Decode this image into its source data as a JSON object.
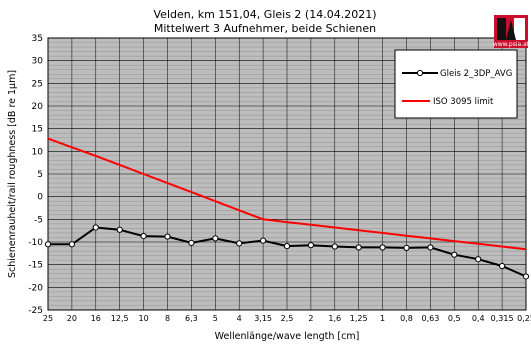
{
  "chart_data": {
    "type": "line",
    "title": "Velden, km 151,04, Gleis 2 (14.04.2021)",
    "subtitle": "Mittelwert 3 Aufnehmer, beide Schienen",
    "xlabel": "Wellenlänge/wave length [cm]",
    "ylabel": "Schienenrauheit/rail roughness [dB re 1µm]",
    "categories": [
      "25",
      "20",
      "16",
      "12,5",
      "10",
      "8",
      "6,3",
      "5",
      "4",
      "3,15",
      "2,5",
      "2",
      "1,6",
      "1,25",
      "1",
      "0,8",
      "0,63",
      "0,5",
      "0,4",
      "0,315",
      "0,25"
    ],
    "ylim": [
      -25,
      35
    ],
    "yticks": [
      35,
      30,
      25,
      20,
      15,
      10,
      5,
      0,
      -5,
      -10,
      -15,
      -20,
      -25
    ],
    "grid": true,
    "legend_position": "top-right",
    "series": [
      {
        "name": "Gleis 2_3DP_AVG",
        "color": "#000000",
        "marker": "circle",
        "values": [
          -10.5,
          -10.5,
          -6.8,
          -7.3,
          -8.7,
          -8.8,
          -10.2,
          -9.2,
          -10.3,
          -9.7,
          -10.9,
          -10.7,
          -11.0,
          -11.2,
          -11.2,
          -11.3,
          -11.2,
          -12.8,
          -13.8,
          -15.3,
          -17.6
        ]
      },
      {
        "name": "ISO 3095 limit",
        "color": "#ff0000",
        "marker": "none",
        "values": [
          12.8,
          10.9,
          9.0,
          7.0,
          5.0,
          3.0,
          1.0,
          -1.0,
          -3.0,
          -5.0,
          -5.6,
          -6.2,
          -6.8,
          -7.4,
          -8.0,
          -8.6,
          -9.2,
          -9.8,
          -10.4,
          -11.0,
          -11.6
        ]
      }
    ]
  },
  "logo": {
    "text": "www.psia.at",
    "colors": {
      "red": "#c8102e",
      "black": "#111111"
    }
  }
}
